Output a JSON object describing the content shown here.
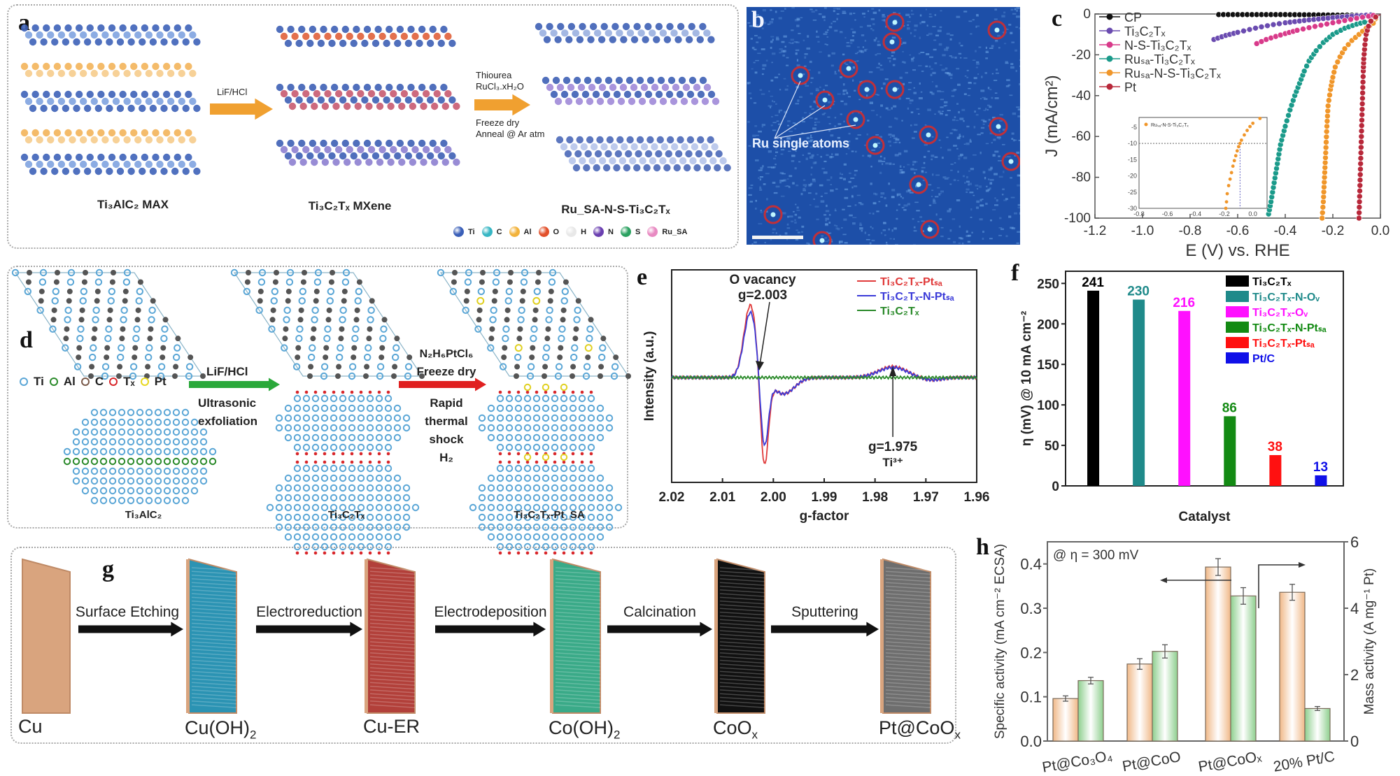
{
  "panel_labels": {
    "a": "a",
    "b": "b",
    "c": "c",
    "d": "d",
    "e": "e",
    "f": "f",
    "g": "g",
    "h": "h"
  },
  "panel_a": {
    "materials": [
      "Ti₃AlC₂ MAX",
      "Ti₃C₂Tₓ MXene",
      "Ru_SA-N-S-Ti₃C₂Tₓ"
    ],
    "step1": "LiF/HCl",
    "step2_top": [
      "Thiourea",
      "RuCl₃.xH₂O"
    ],
    "step2_bottom": [
      "Freeze dry",
      "Anneal @ Ar atm"
    ],
    "legend": [
      {
        "label": "Ti",
        "color": "#3a5fb8"
      },
      {
        "label": "C",
        "color": "#37b6c4"
      },
      {
        "label": "Al",
        "color": "#f2b23a"
      },
      {
        "label": "O",
        "color": "#e2502a"
      },
      {
        "label": "H",
        "color": "#e8e8e8"
      },
      {
        "label": "N",
        "color": "#6a3fb0"
      },
      {
        "label": "S",
        "color": "#2aa160"
      },
      {
        "label": "Ru_SA",
        "color": "#e88ac2"
      }
    ]
  },
  "panel_b": {
    "annotation": "Ru single atoms",
    "background_color": "#1d4fa8",
    "marker_color": "#c0303a"
  },
  "panel_d": {
    "legend": [
      {
        "label": "Ti",
        "color": "#5aa6d6"
      },
      {
        "label": "Al",
        "color": "#2a8a2a"
      },
      {
        "label": "C",
        "color": "#7a5a4a"
      },
      {
        "label": "Tₓ",
        "color": "#d8262a"
      },
      {
        "label": "Pt",
        "color": "#e8d820"
      }
    ],
    "step1_top": "LiF/HCl",
    "step1_bottom": [
      "Ultrasonic",
      "exfoliation"
    ],
    "step2_top": [
      "N₂H₆PtCl₆",
      "Freeze dry"
    ],
    "step2_bottom": [
      "Rapid",
      "thermal",
      "shock",
      "H₂"
    ],
    "materials": [
      "Ti₃AlC₂",
      "Ti₃C₂Tₓ",
      "Ti₃C₂Tₓ-Pt_SA"
    ],
    "arrow1_color": "#2aa83a",
    "arrow2_color": "#e02020"
  },
  "panel_g": {
    "steps": [
      "Surface Etching",
      "Electroreduction",
      "Electrodeposition",
      "Calcination",
      "Sputtering"
    ],
    "materials": [
      {
        "label": "Cu",
        "sub": "",
        "color": "#d9a47e"
      },
      {
        "label": "Cu(OH)",
        "sub": "2",
        "color": "#2b93b3"
      },
      {
        "label": "Cu-ER",
        "sub": "",
        "color": "#b2403a"
      },
      {
        "label": "Co(OH)",
        "sub": "2",
        "color": "#3aaa88"
      },
      {
        "label": "CoO",
        "sub": "x",
        "color": "#111111"
      },
      {
        "label": "Pt@CoO",
        "sub": "x",
        "color": "#6e6e6e"
      }
    ]
  },
  "chart_data": [
    {
      "id": "c",
      "type": "scatter",
      "title": "",
      "xlabel": "E (V) vs. RHE",
      "ylabel": "J (mA/cm²)",
      "xlim": [
        -1.2,
        0.0
      ],
      "ylim": [
        -100,
        0
      ],
      "xticks": [
        "-1.2",
        "-1.0",
        "-0.8",
        "-0.6",
        "-0.4",
        "-0.2",
        "0.0"
      ],
      "yticks": [
        "0",
        "-20",
        "-40",
        "-60",
        "-80",
        "-100"
      ],
      "legend_position": "top-left",
      "series": [
        {
          "name": "CP",
          "color": "#111111",
          "x": [
            -0.68,
            -0.6,
            -0.5,
            -0.4,
            -0.3,
            -0.2,
            -0.1,
            -0.02
          ],
          "y": [
            -0.3,
            -0.3,
            -0.3,
            -0.3,
            -0.4,
            -0.5,
            -0.6,
            -0.8
          ]
        },
        {
          "name": "Ti₃C₂Tₓ",
          "color": "#6a4bb0",
          "x": [
            -0.7,
            -0.65,
            -0.6,
            -0.55,
            -0.5,
            -0.45,
            -0.4,
            -0.3,
            -0.2,
            -0.1,
            -0.02
          ],
          "y": [
            -12.5,
            -10.5,
            -9,
            -7.6,
            -6.3,
            -5.2,
            -4.3,
            -2.9,
            -1.8,
            -0.9,
            -0.3
          ]
        },
        {
          "name": "N-S-Ti₃C₂Tₓ",
          "color": "#d83a8a",
          "x": [
            -0.52,
            -0.48,
            -0.44,
            -0.4,
            -0.35,
            -0.3,
            -0.25,
            -0.2,
            -0.15,
            -0.1,
            -0.05,
            -0.01
          ],
          "y": [
            -14.5,
            -12.5,
            -11,
            -9.6,
            -8,
            -6.7,
            -5.5,
            -4.3,
            -3.2,
            -2.1,
            -1.1,
            -0.3
          ]
        },
        {
          "name": "Ru_SA-Ti₃C₂Tₓ",
          "color": "#1a9a8a",
          "x": [
            -0.47,
            -0.46,
            -0.45,
            -0.44,
            -0.43,
            -0.42,
            -0.4,
            -0.38,
            -0.36,
            -0.34,
            -0.32,
            -0.3,
            -0.27,
            -0.24,
            -0.2,
            -0.15,
            -0.1,
            -0.05
          ],
          "y": [
            -98,
            -92,
            -85,
            -78,
            -71,
            -64,
            -55,
            -47,
            -40,
            -34,
            -28,
            -23,
            -18,
            -14,
            -10,
            -7,
            -5,
            -3.5
          ]
        },
        {
          "name": "Ru_SA-N-S-Ti₃C₂Tₓ",
          "color": "#f0962a",
          "x": [
            -0.245,
            -0.24,
            -0.235,
            -0.23,
            -0.225,
            -0.22,
            -0.21,
            -0.2,
            -0.19,
            -0.17,
            -0.15,
            -0.12,
            -0.09,
            -0.06,
            -0.03,
            -0.01
          ],
          "y": [
            -100,
            -92,
            -80,
            -68,
            -55,
            -45,
            -37,
            -31,
            -26,
            -21,
            -17,
            -13,
            -10,
            -7,
            -4.5,
            -2.5
          ]
        },
        {
          "name": "Pt",
          "color": "#b8283a",
          "x": [
            -0.09,
            -0.088,
            -0.086,
            -0.084,
            -0.082,
            -0.08,
            -0.078,
            -0.076,
            -0.074,
            -0.072,
            -0.07,
            -0.065,
            -0.06,
            -0.05,
            -0.04,
            -0.02,
            0.0
          ],
          "y": [
            -100,
            -92,
            -84,
            -76,
            -68,
            -60,
            -52,
            -44,
            -36,
            -28,
            -22,
            -15,
            -10,
            -6,
            -3.5,
            -1.5,
            -0.3
          ]
        }
      ],
      "inset": {
        "legend": "Ru_SA-N-S-Ti₃C₂Tₓ",
        "xlim": [
          -0.8,
          0.1
        ],
        "ylim": [
          -30,
          -2
        ],
        "xticks": [
          "-0.8",
          "-0.6",
          "-0.4",
          "-0.2",
          "0.0"
        ],
        "yticks": [
          "-5",
          "-10",
          "-15",
          "-20",
          "-25",
          "-30"
        ],
        "reference_current": -10,
        "reference_potential": -0.09,
        "x": [
          -0.19,
          -0.185,
          -0.18,
          -0.17,
          -0.16,
          -0.15,
          -0.14,
          -0.13,
          -0.12,
          -0.11,
          -0.1,
          -0.09,
          -0.08,
          -0.06,
          -0.04,
          -0.02,
          0.0,
          0.05
        ],
        "y": [
          -30,
          -28,
          -25.5,
          -23,
          -21,
          -19,
          -17,
          -15.3,
          -13.8,
          -12.3,
          -11,
          -10,
          -9,
          -7.4,
          -6,
          -4.8,
          -3.8,
          -2.3
        ]
      }
    },
    {
      "id": "e",
      "type": "line",
      "xlabel": "g-factor",
      "ylabel": "Intensity (a.u.)",
      "xlim": [
        2.02,
        1.96
      ],
      "xticks": [
        "2.02",
        "2.01",
        "2.00",
        "1.99",
        "1.98",
        "1.97",
        "1.96"
      ],
      "legend_position": "top-right",
      "annotations": [
        {
          "text": [
            "O vacancy",
            "g=2.003"
          ],
          "x": 2.003
        },
        {
          "text": [
            "g=1.975",
            "Ti³⁺"
          ],
          "x": 1.9765
        }
      ],
      "series": [
        {
          "name": "Ti₃C₂Tₓ-Pt_SA",
          "color": "#e03a3a",
          "peak_pos": 2.0045,
          "peak_neg": 2.0018,
          "amp_pos": 0.8,
          "amp_neg": -1.0,
          "ti_amp": 0.12
        },
        {
          "name": "Ti₃C₂Tₓ-N-Pt_SA",
          "color": "#3a3ad8",
          "peak_pos": 2.0045,
          "peak_neg": 2.0018,
          "amp_pos": 0.72,
          "amp_neg": -0.78,
          "ti_amp": 0.11
        },
        {
          "name": "Ti₃C₂Tₓ",
          "color": "#2a8a2a",
          "flat": true
        }
      ]
    },
    {
      "id": "f",
      "type": "bar",
      "xlabel": "Catalyst",
      "ylabel": "η (mV) @ 10 mA cm⁻²",
      "ylim": [
        0,
        265
      ],
      "yticks": [
        0,
        50,
        100,
        150,
        200,
        250
      ],
      "legend_position": "top-right",
      "categories": [
        "Ti₃C₂Tₓ",
        "Ti₃C₂Tₓ-N-Oᵥ",
        "Ti₃C₂Tₓ-Oᵥ",
        "Ti₃C₂Tₓ-N-Pt_SA",
        "Ti₃C₂Tₓ-Pt_SA",
        "Pt/C"
      ],
      "values": [
        241,
        230,
        216,
        86,
        38,
        13
      ],
      "colors": [
        "#000000",
        "#1f8a8a",
        "#ff10ff",
        "#138a13",
        "#ff1010",
        "#1010e8"
      ]
    },
    {
      "id": "h",
      "type": "bar",
      "annotation": "@ η = 300 mV",
      "ylabel": "Specific activity (mA cm⁻² ECSA)",
      "ylabel_right": "Mass activity (A mg⁻¹ Pt)",
      "ylim": [
        0,
        0.45
      ],
      "ylim_right": [
        0,
        6
      ],
      "yticks": [
        "0.0",
        "0.1",
        "0.2",
        "0.3",
        "0.4"
      ],
      "yticks_right": [
        "0",
        "2",
        "4",
        "6"
      ],
      "categories": [
        "Pt@Co₃O₄",
        "Pt@CoO",
        "Pt@CoOₓ",
        "20% Pt/C"
      ],
      "series": [
        {
          "name": "Specific activity",
          "axis": "left",
          "color": "#f0b888",
          "values": [
            0.096,
            0.174,
            0.393,
            0.336
          ],
          "errors": [
            0.006,
            0.012,
            0.019,
            0.018
          ]
        },
        {
          "name": "Mass activity",
          "axis": "right",
          "color": "#8ecf8e",
          "values": [
            1.82,
            2.7,
            4.37,
            0.98
          ],
          "errors": [
            0.1,
            0.2,
            0.25,
            0.06
          ]
        }
      ]
    }
  ]
}
